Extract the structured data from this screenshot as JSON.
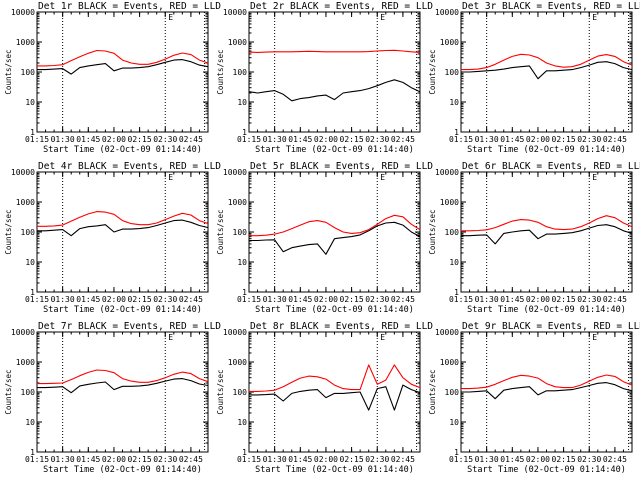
{
  "colors": {
    "events": "#000000",
    "lld": "#ff0000",
    "frame": "#000000",
    "marker": "#000000"
  },
  "chart_data": {
    "type": "line",
    "layout": "3x3 grid of panels",
    "yscale": "log",
    "ylim": [
      1,
      10000
    ],
    "xlim": [
      "01:15",
      "02:55"
    ],
    "xticks": [
      "01:15",
      "01:30",
      "01:45",
      "02:00",
      "02:15",
      "02:30",
      "02:45"
    ],
    "ytick_labels": [
      "1",
      "10",
      "100",
      "1000",
      "10000"
    ],
    "ylabel": "Counts/sec",
    "xlabel": "Start Time (02-Oct-09 01:14:40)",
    "vertical_markers": [
      "01:30",
      "02:30",
      "02:53"
    ],
    "top_marker_label": "E",
    "time_axis": [
      "01:15",
      "01:20",
      "01:25",
      "01:30",
      "01:35",
      "01:40",
      "01:45",
      "01:50",
      "01:55",
      "02:00",
      "02:05",
      "02:10",
      "02:15",
      "02:20",
      "02:25",
      "02:30",
      "02:35",
      "02:40",
      "02:45",
      "02:50",
      "02:55"
    ],
    "panels": [
      {
        "title": "Det 1r BLACK = Events, RED = LLD",
        "series": [
          {
            "name": "Events",
            "color": "#000000",
            "values": [
              120,
              120,
              125,
              130,
              85,
              140,
              160,
              175,
              190,
              110,
              135,
              135,
              140,
              150,
              175,
              210,
              250,
              260,
              220,
              170,
              150
            ]
          },
          {
            "name": "LLD",
            "color": "#ff0000",
            "values": [
              160,
              160,
              165,
              175,
              240,
              320,
              420,
              520,
              500,
              420,
              250,
              200,
              180,
              180,
              210,
              270,
              360,
              430,
              380,
              250,
              200
            ]
          }
        ]
      },
      {
        "title": "Det 2r BLACK = Events, RED = LLD",
        "series": [
          {
            "name": "Events",
            "color": "#000000",
            "values": [
              22,
              20,
              22,
              24,
              18,
              11,
              13,
              14,
              16,
              17,
              12,
              20,
              22,
              24,
              28,
              35,
              45,
              55,
              45,
              30,
              22
            ]
          },
          {
            "name": "LLD",
            "color": "#ff0000",
            "values": [
              460,
              450,
              460,
              470,
              470,
              470,
              480,
              490,
              480,
              470,
              470,
              470,
              470,
              470,
              480,
              500,
              520,
              530,
              500,
              470,
              450
            ]
          }
        ]
      },
      {
        "title": "Det 3r BLACK = Events, RED = LLD",
        "series": [
          {
            "name": "Events",
            "color": "#000000",
            "values": [
              100,
              100,
              105,
              110,
              115,
              125,
              140,
              150,
              160,
              60,
              110,
              110,
              115,
              120,
              140,
              170,
              210,
              220,
              190,
              140,
              120
            ]
          },
          {
            "name": "LLD",
            "color": "#ff0000",
            "values": [
              120,
              120,
              125,
              140,
              180,
              250,
              330,
              390,
              370,
              300,
              200,
              160,
              145,
              150,
              180,
              250,
              340,
              380,
              330,
              220,
              170
            ]
          }
        ]
      },
      {
        "title": "Det 4r BLACK = Events, RED = LLD",
        "series": [
          {
            "name": "Events",
            "color": "#000000",
            "values": [
              110,
              110,
              115,
              120,
              75,
              130,
              150,
              160,
              175,
              100,
              125,
              125,
              130,
              140,
              165,
              200,
              240,
              250,
              210,
              165,
              140
            ]
          },
          {
            "name": "LLD",
            "color": "#ff0000",
            "values": [
              155,
              155,
              160,
              170,
              230,
              310,
              400,
              480,
              460,
              390,
              240,
              190,
              175,
              175,
              200,
              260,
              340,
              420,
              370,
              240,
              190
            ]
          }
        ]
      },
      {
        "title": "Det 5r BLACK = Events, RED = LLD",
        "series": [
          {
            "name": "Events",
            "color": "#000000",
            "values": [
              52,
              52,
              54,
              55,
              22,
              30,
              34,
              38,
              40,
              18,
              60,
              65,
              70,
              80,
              110,
              160,
              200,
              210,
              170,
              100,
              70
            ]
          },
          {
            "name": "LLD",
            "color": "#ff0000",
            "values": [
              75,
              75,
              78,
              85,
              100,
              130,
              170,
              220,
              240,
              210,
              140,
              100,
              90,
              95,
              120,
              180,
              280,
              360,
              320,
              180,
              120
            ]
          }
        ]
      },
      {
        "title": "Det 6r BLACK = Events, RED = LLD",
        "series": [
          {
            "name": "Events",
            "color": "#000000",
            "values": [
              75,
              75,
              78,
              80,
              40,
              90,
              100,
              110,
              115,
              60,
              85,
              85,
              90,
              95,
              110,
              135,
              165,
              175,
              150,
              110,
              90
            ]
          },
          {
            "name": "LLD",
            "color": "#ff0000",
            "values": [
              110,
              110,
              112,
              118,
              140,
              180,
              230,
              260,
              250,
              210,
              150,
              125,
              120,
              125,
              150,
              200,
              280,
              350,
              300,
              200,
              150
            ]
          }
        ]
      },
      {
        "title": "Det 7r BLACK = Events, RED = LLD",
        "series": [
          {
            "name": "Events",
            "color": "#000000",
            "values": [
              140,
              140,
              145,
              150,
              95,
              160,
              180,
              200,
              215,
              120,
              155,
              155,
              160,
              170,
              195,
              230,
              270,
              280,
              240,
              185,
              165
            ]
          },
          {
            "name": "LLD",
            "color": "#ff0000",
            "values": [
              190,
              190,
              195,
              200,
              260,
              350,
              450,
              540,
              520,
              440,
              280,
              230,
              210,
              210,
              240,
              300,
              390,
              460,
              410,
              280,
              220
            ]
          }
        ]
      },
      {
        "title": "Det 8r BLACK = Events, RED = LLD",
        "series": [
          {
            "name": "Events",
            "color": "#000000",
            "values": [
              80,
              80,
              82,
              85,
              50,
              90,
              105,
              115,
              120,
              65,
              90,
              90,
              95,
              100,
              25,
              130,
              150,
              25,
              170,
              120,
              95
            ]
          },
          {
            "name": "LLD",
            "color": "#ff0000",
            "values": [
              105,
              105,
              108,
              115,
              150,
              210,
              290,
              340,
              320,
              270,
              170,
              130,
              120,
              120,
              800,
              180,
              250,
              800,
              300,
              180,
              140
            ]
          }
        ]
      },
      {
        "title": "Det 9r BLACK = Events, RED = LLD",
        "series": [
          {
            "name": "Events",
            "color": "#000000",
            "values": [
              100,
              100,
              105,
              110,
              60,
              115,
              130,
              140,
              150,
              80,
              110,
              110,
              115,
              120,
              140,
              165,
              195,
              205,
              175,
              130,
              110
            ]
          },
          {
            "name": "LLD",
            "color": "#ff0000",
            "values": [
              130,
              130,
              135,
              145,
              180,
              240,
              310,
              360,
              340,
              290,
              190,
              150,
              140,
              140,
              170,
              230,
              310,
              370,
              330,
              220,
              170
            ]
          }
        ]
      }
    ]
  }
}
